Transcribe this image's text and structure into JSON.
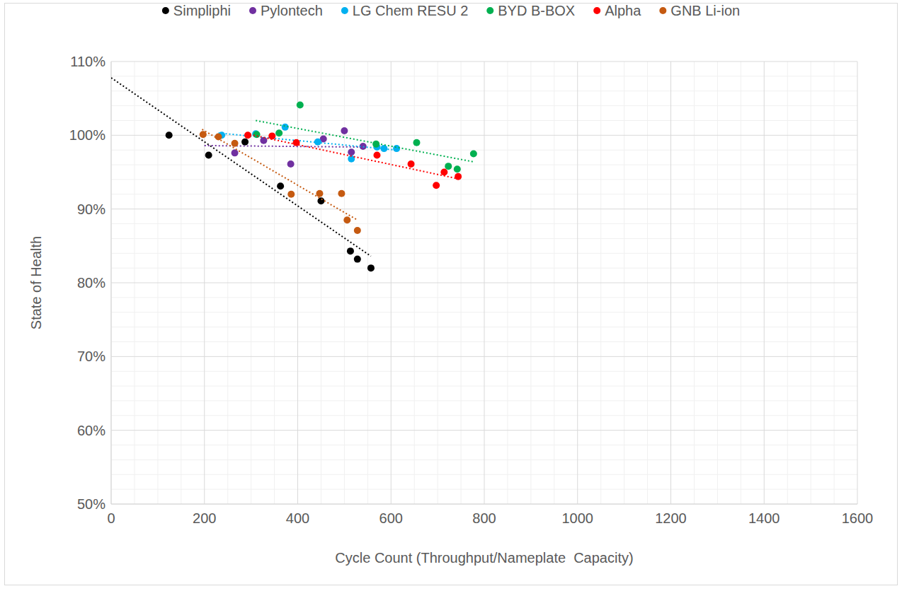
{
  "chart_data": {
    "type": "scatter",
    "x_label": "Cycle Count (Throughput/Nameplate  Capacity)",
    "y_label": "State of Health",
    "xlim": [
      0,
      1600
    ],
    "xticks": [
      0,
      200,
      400,
      600,
      800,
      1000,
      1200,
      1400,
      1600
    ],
    "ylim": [
      50,
      110
    ],
    "yticks": [
      {
        "value": 50,
        "label": "50%"
      },
      {
        "value": 60,
        "label": "60%"
      },
      {
        "value": 70,
        "label": "70%"
      },
      {
        "value": 80,
        "label": "80%"
      },
      {
        "value": 90,
        "label": "90%"
      },
      {
        "value": 100,
        "label": "100%"
      },
      {
        "value": 110,
        "label": "110%"
      }
    ],
    "grid": true,
    "legend": "top",
    "marker": "circle",
    "line_style": "dotted",
    "series": [
      {
        "name": "Simpliphi",
        "color": "#000000",
        "x": [
          124,
          209,
          287,
          363,
          450,
          513,
          528,
          557
        ],
        "values": [
          100,
          97.3,
          99.1,
          93.1,
          91.1,
          84.3,
          83.2,
          82.0
        ],
        "trend": {
          "x": [
            0,
            557
          ],
          "values": [
            107.8,
            83.6
          ]
        }
      },
      {
        "name": "Pylontech",
        "color": "#7030a0",
        "x": [
          265,
          327,
          385,
          455,
          500,
          515,
          540
        ],
        "values": [
          97.6,
          99.3,
          96.1,
          99.5,
          100.6,
          97.7,
          98.5
        ],
        "trend": {
          "x": [
            200,
            540
          ],
          "values": [
            98.6,
            98.4
          ]
        }
      },
      {
        "name": "LG Chem RESU 2",
        "color": "#00b0f0",
        "x": [
          237,
          310,
          373,
          443,
          515,
          570,
          585,
          612
        ],
        "values": [
          100,
          100.2,
          101.1,
          99.1,
          96.8,
          98.4,
          98.2,
          98.2
        ],
        "trend": {
          "x": [
            230,
            612
          ],
          "values": [
            100.3,
            98.0
          ]
        }
      },
      {
        "name": "BYD B-BOX",
        "color": "#00b050",
        "x": [
          312,
          360,
          405,
          568,
          655,
          723,
          742,
          777
        ],
        "values": [
          100.1,
          100.3,
          104.1,
          98.8,
          99.0,
          95.8,
          95.4,
          97.5
        ],
        "trend": {
          "x": [
            310,
            777
          ],
          "values": [
            102.0,
            96.4
          ]
        }
      },
      {
        "name": "Alpha",
        "color": "#ff0000",
        "x": [
          293,
          345,
          397,
          570,
          643,
          697,
          714,
          744
        ],
        "values": [
          100,
          99.9,
          99.0,
          97.3,
          96.1,
          93.2,
          95.0,
          94.4
        ],
        "trend": {
          "x": [
            290,
            744
          ],
          "values": [
            100.2,
            94.1
          ]
        }
      },
      {
        "name": "GNB Li-ion",
        "color": "#c55a11",
        "x": [
          197,
          230,
          265,
          386,
          447,
          494,
          506,
          528
        ],
        "values": [
          100.1,
          99.8,
          98.9,
          92.0,
          92.1,
          92.1,
          88.5,
          87.1
        ],
        "trend": {
          "x": [
            195,
            528
          ],
          "values": [
            100.8,
            88.5
          ]
        }
      }
    ]
  }
}
